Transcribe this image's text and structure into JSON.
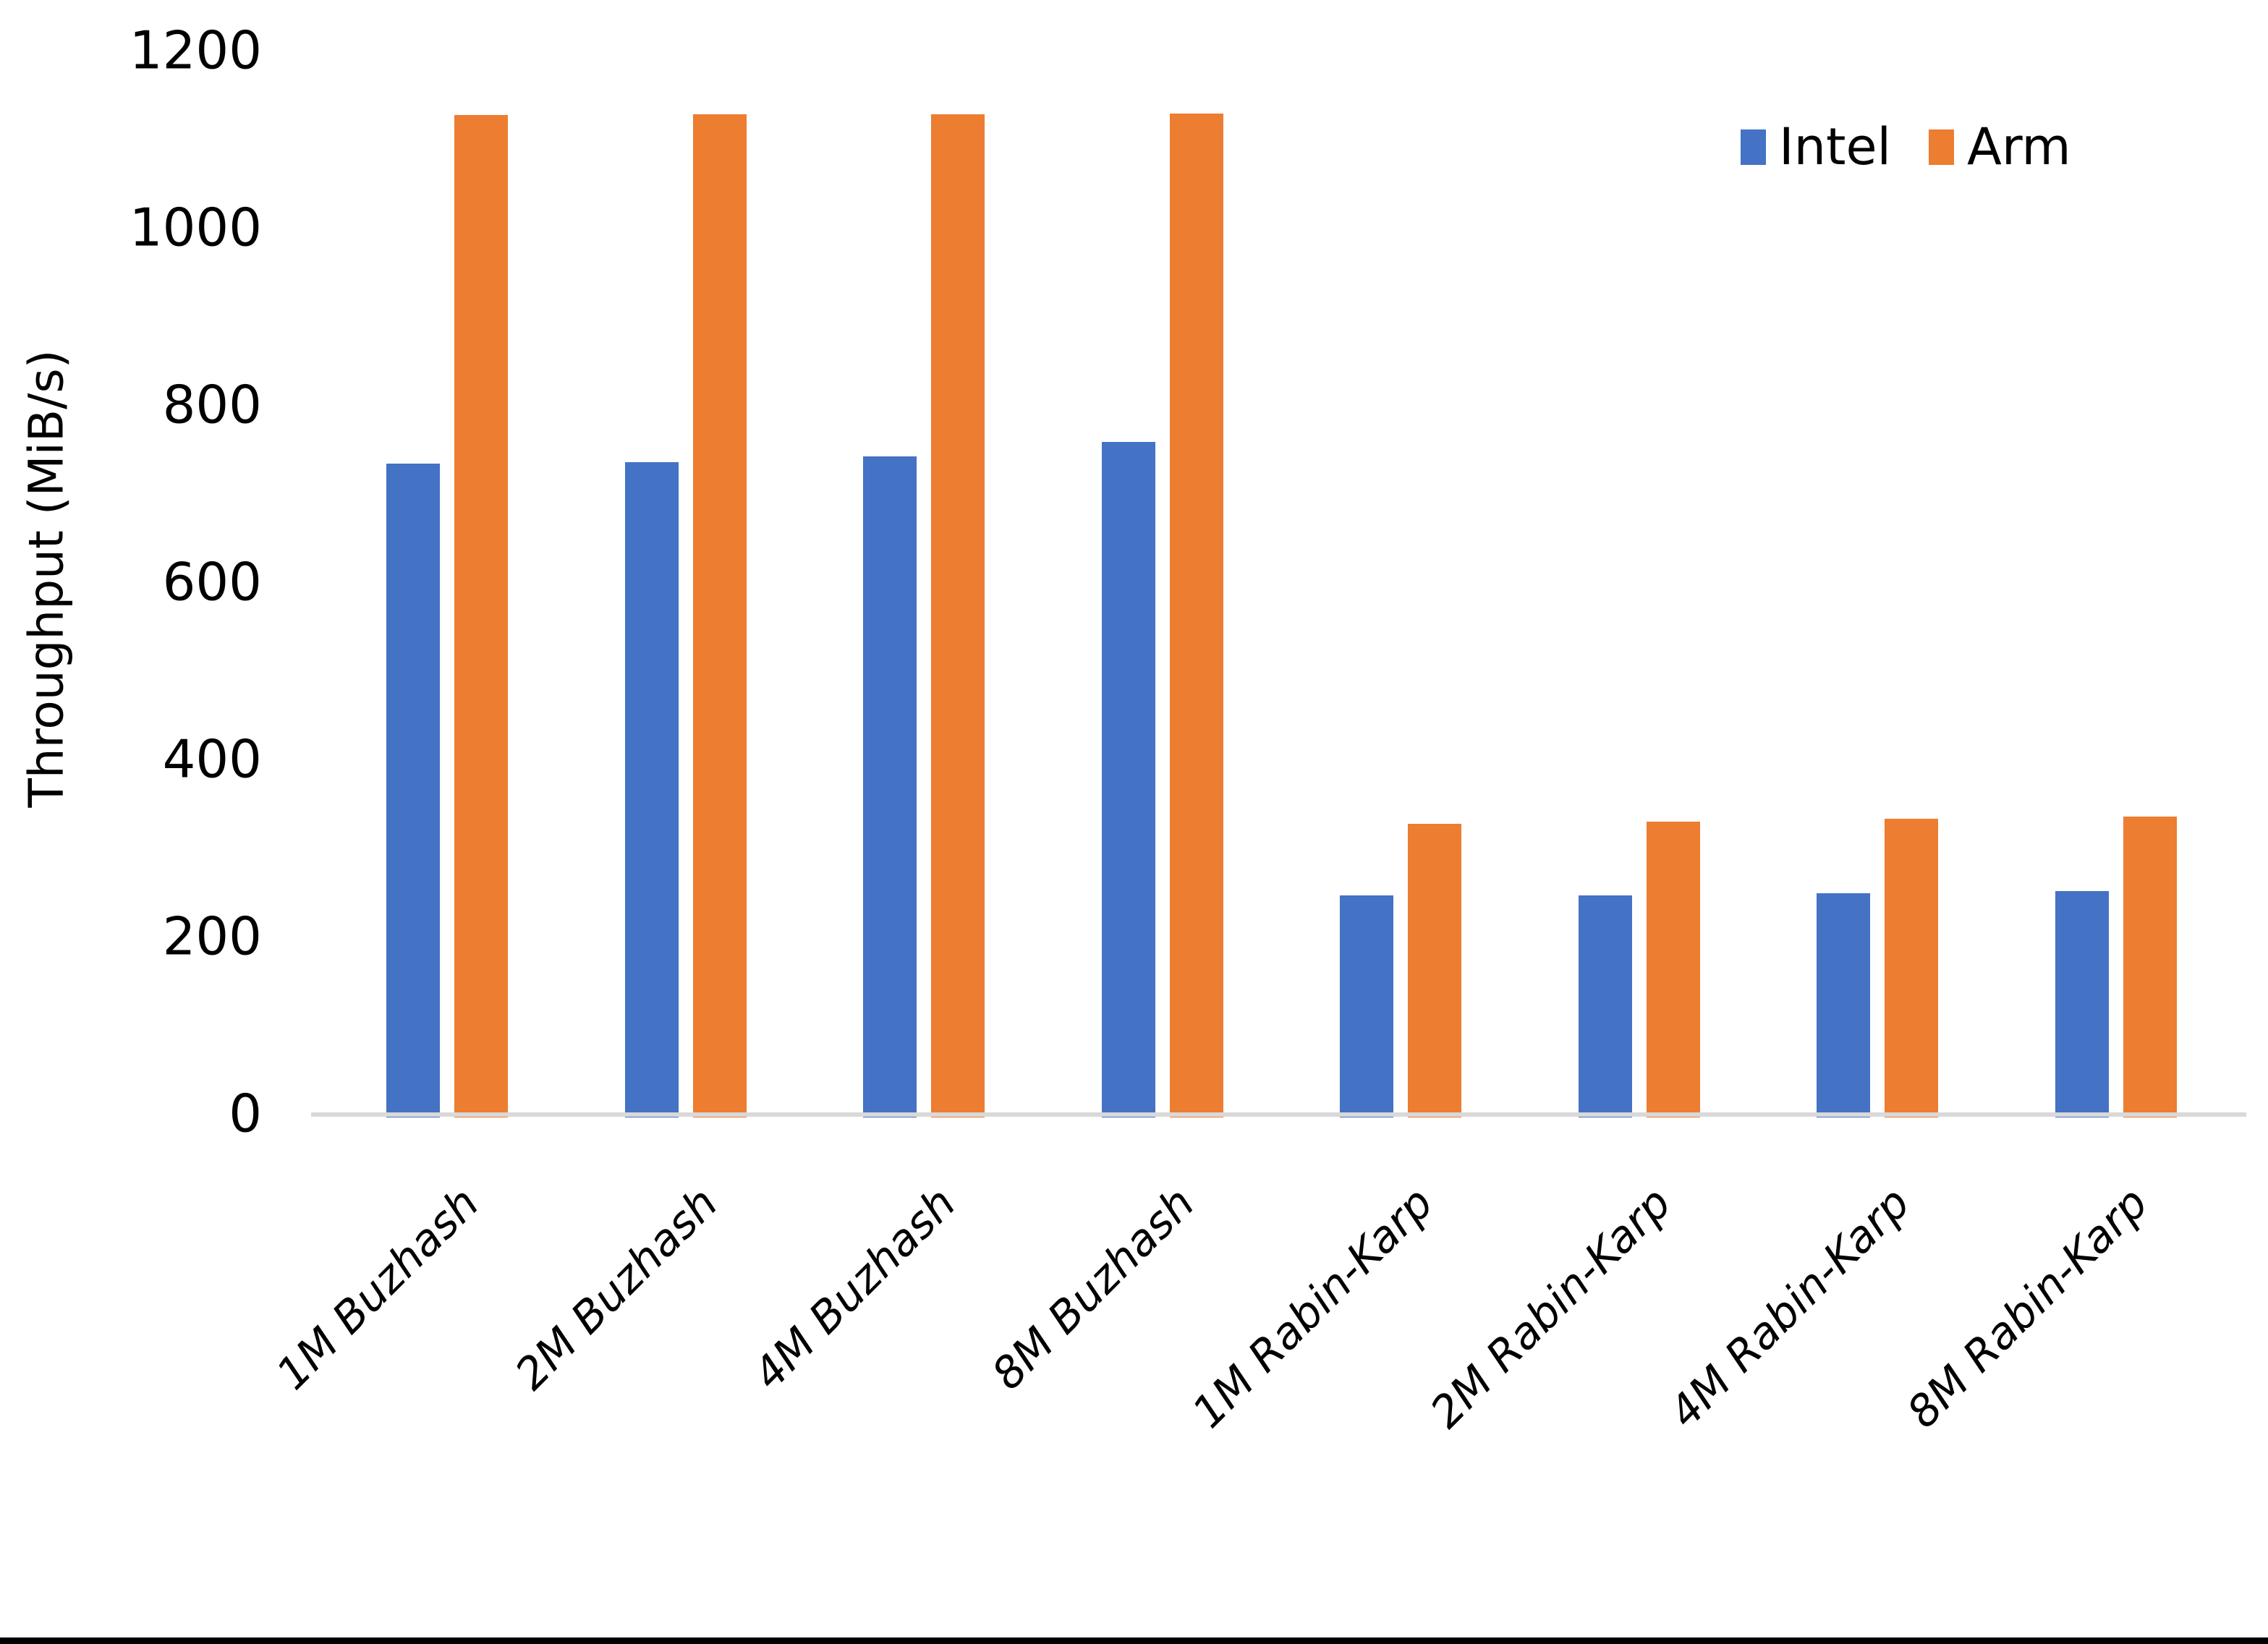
{
  "colors": {
    "background": "#FFFFFF",
    "text": "#000000",
    "axis_line": "#D9D9D9",
    "bottom_bar": "#000000",
    "intel": "#4472C4",
    "arm": "#ED7D31"
  },
  "y_axis": {
    "title": "Throughput (MiB/s)"
  },
  "chart_data": {
    "type": "bar",
    "title": "",
    "xlabel": "",
    "ylabel": "Throughput (MiB/s)",
    "ylim": [
      0,
      1200
    ],
    "yticks": [
      0,
      200,
      400,
      600,
      800,
      1000,
      1200
    ],
    "grid": false,
    "legend_position": "top-right",
    "categories": [
      "1M Buzhash",
      "2M Buzhash",
      "4M Buzhash",
      "8M Buzhash",
      "1M Rabin-Karp",
      "2M Rabin-Karp",
      "4M Rabin-Karp",
      "8M Rabin-Karp"
    ],
    "series": [
      {
        "name": "Intel",
        "color": "#4472C4",
        "values": [
          735,
          736,
          743,
          759,
          247,
          247,
          250,
          252
        ]
      },
      {
        "name": "Arm",
        "color": "#ED7D31",
        "values": [
          1128,
          1129,
          1129,
          1130,
          328,
          331,
          334,
          336
        ]
      }
    ]
  }
}
